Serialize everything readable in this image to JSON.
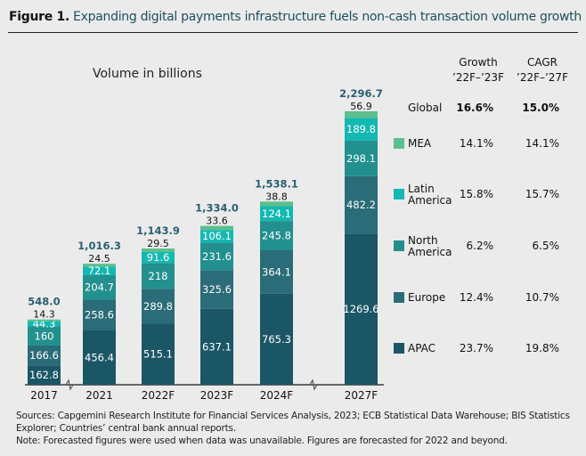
{
  "figure": {
    "label": "Figure 1.",
    "title": "Expanding digital payments infrastructure fuels non-cash transaction volume growth"
  },
  "chart_data": {
    "type": "bar",
    "stacked": true,
    "unit_label": "Volume in billions",
    "categories": [
      "2017",
      "2021",
      "2022F",
      "2023F",
      "2024F",
      "2027F"
    ],
    "axis_breaks_after": [
      "2017",
      "2024F"
    ],
    "series": [
      {
        "name": "APAC",
        "color": "#1b5666",
        "values": [
          162.8,
          456.4,
          515.1,
          637.1,
          765.3,
          1269.6
        ],
        "labels": [
          "162.8",
          "456.4",
          "515.1",
          "637.1",
          "765.3",
          "1269.6"
        ]
      },
      {
        "name": "Europe",
        "color": "#2a6c77",
        "values": [
          166.6,
          258.6,
          289.8,
          325.6,
          364.1,
          482.2
        ],
        "labels": [
          "166.6",
          "258.6",
          "289.8",
          "325.6",
          "364.1",
          "482.2"
        ]
      },
      {
        "name": "North America",
        "color": "#22908e",
        "values": [
          160,
          204.7,
          218,
          231.6,
          245.8,
          298.1
        ],
        "labels": [
          "160",
          "204.7",
          "218",
          "231.6",
          "245.8",
          "298.1"
        ]
      },
      {
        "name": "Latin America",
        "color": "#14b8b2",
        "values": [
          44.3,
          72.1,
          91.6,
          106.1,
          124.1,
          189.8
        ],
        "labels": [
          "44.3",
          "72.1",
          "91.6",
          "106.1",
          "124.1",
          "189.8"
        ]
      },
      {
        "name": "MEA",
        "color": "#5cbf8e",
        "values": [
          14.3,
          24.5,
          29.5,
          33.6,
          38.8,
          56.9
        ],
        "labels": [
          "14.3",
          "24.5",
          "29.5",
          "33.6",
          "38.8",
          "56.9"
        ]
      }
    ],
    "totals": [
      "548.0",
      "1,016.3",
      "1,143.9",
      "1,334.0",
      "1,538.1",
      "2,296.7"
    ],
    "total_color": "#2a5f70",
    "table": {
      "headers": [
        [
          "Growth",
          "’22F–’23F"
        ],
        [
          "CAGR",
          "’22F–’27F"
        ]
      ],
      "rows": [
        {
          "name": "Global",
          "growth": "16.6%",
          "cagr": "15.0%",
          "bold": true
        },
        {
          "name": "MEA",
          "growth": "14.1%",
          "cagr": "14.1%"
        },
        {
          "name": "Latin America",
          "lines": [
            "Latin",
            "America"
          ],
          "growth": "15.8%",
          "cagr": "15.7%"
        },
        {
          "name": "North America",
          "lines": [
            "North",
            "America"
          ],
          "growth": "6.2%",
          "cagr": "6.5%"
        },
        {
          "name": "Europe",
          "growth": "12.4%",
          "cagr": "10.7%"
        },
        {
          "name": "APAC",
          "growth": "23.7%",
          "cagr": "19.8%"
        }
      ]
    }
  },
  "notes": {
    "sources_line1": "Sources: Capgemini Research Institute for Financial Services Analysis, 2023; ECB Statistical Data Warehouse; BIS Statistics",
    "sources_line2": "Explorer; Countries’ central bank annual reports.",
    "note": "Note: Forecasted figures were used when data was unavailable. Figures are forecasted for 2022 and beyond."
  }
}
